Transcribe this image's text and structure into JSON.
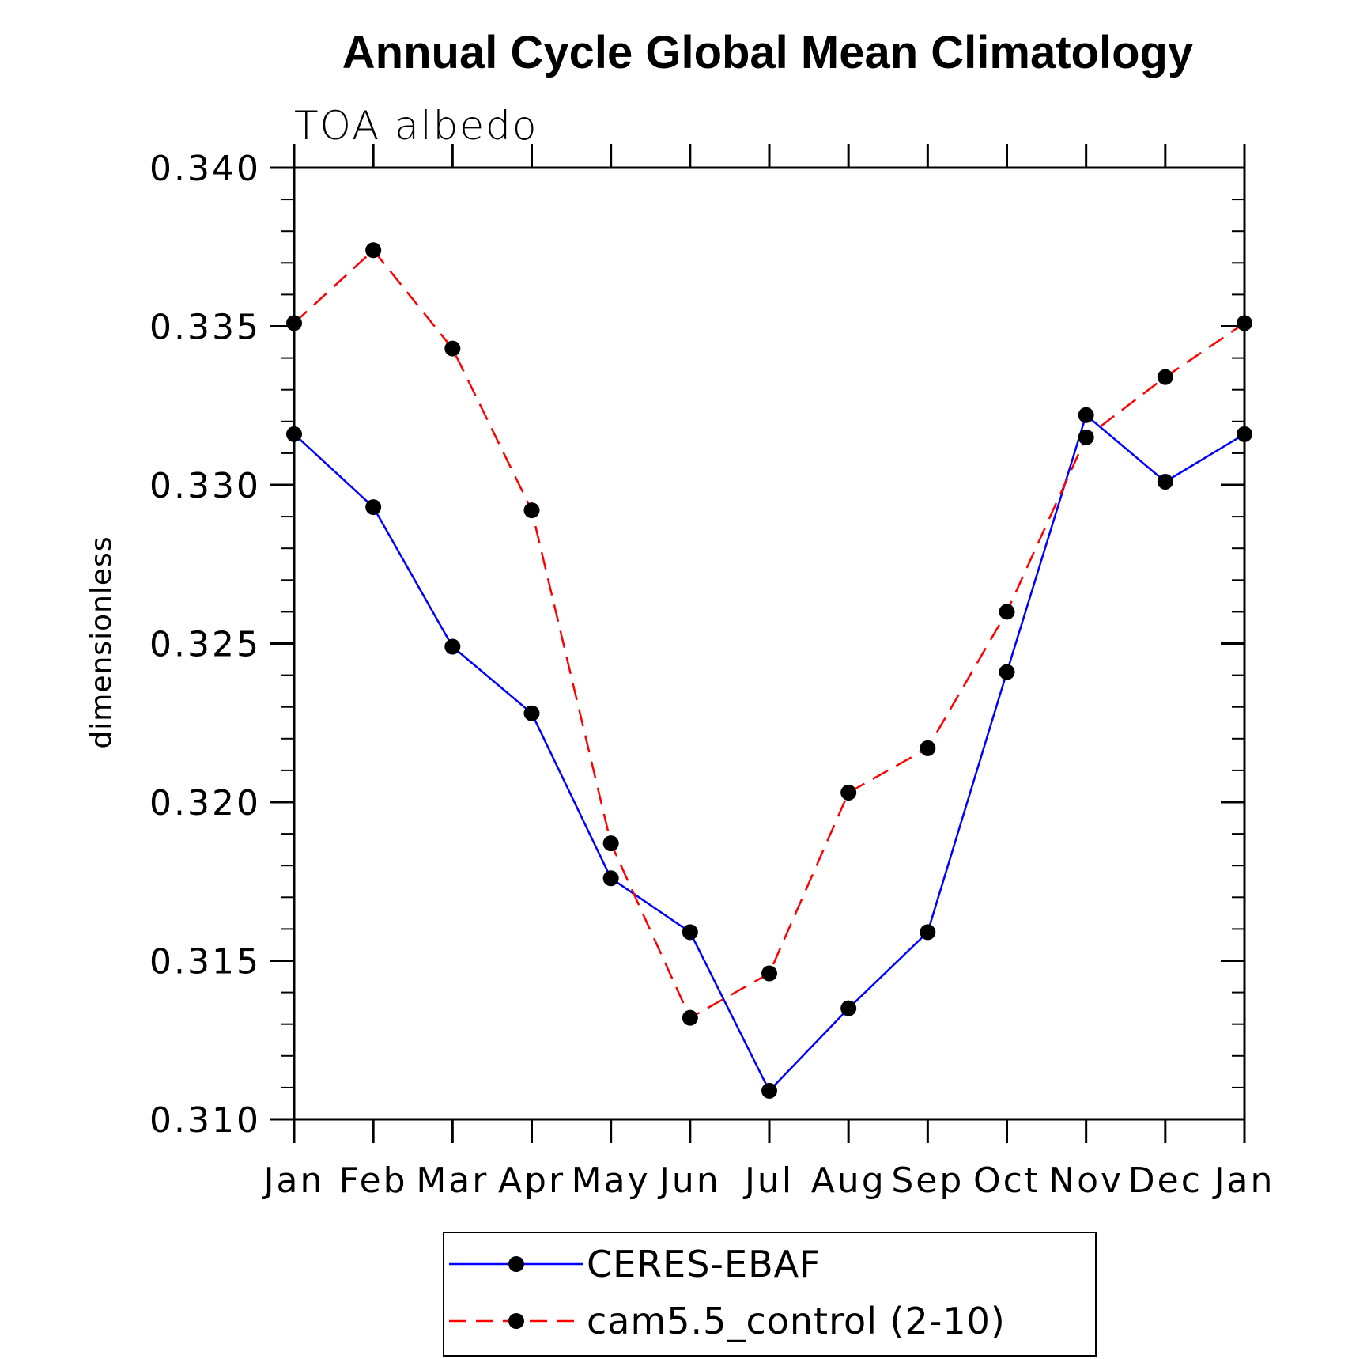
{
  "chart_data": {
    "type": "line",
    "title": "Annual Cycle Global Mean Climatology",
    "subtitle": "TOA albedo",
    "xlabel": "",
    "ylabel": "dimensionless",
    "categories": [
      "Jan",
      "Feb",
      "Mar",
      "Apr",
      "May",
      "Jun",
      "Jul",
      "Aug",
      "Sep",
      "Oct",
      "Nov",
      "Dec",
      "Jan"
    ],
    "ylim": [
      0.31,
      0.34
    ],
    "yticks": [
      "0.310",
      "0.315",
      "0.320",
      "0.325",
      "0.330",
      "0.335",
      "0.340"
    ],
    "grid": false,
    "legend_position": "bottom-center",
    "series": [
      {
        "name": "CERES-EBAF",
        "color": "#0000ff",
        "line_style": "solid",
        "marker": "filled-circle",
        "marker_color": "#000000",
        "values": [
          0.3316,
          0.3293,
          0.3249,
          0.3228,
          0.3176,
          0.3159,
          0.3109,
          0.3135,
          0.3159,
          0.3241,
          0.3322,
          0.3301,
          0.3316
        ]
      },
      {
        "name": "cam5.5_control (2-10)",
        "color": "#ff0000",
        "line_style": "dashed",
        "marker": "filled-circle",
        "marker_color": "#000000",
        "values": [
          0.3351,
          0.3374,
          0.3343,
          0.3292,
          0.3187,
          0.3132,
          0.3146,
          0.3203,
          0.3217,
          0.326,
          0.3315,
          0.3334,
          0.3351
        ]
      }
    ]
  }
}
